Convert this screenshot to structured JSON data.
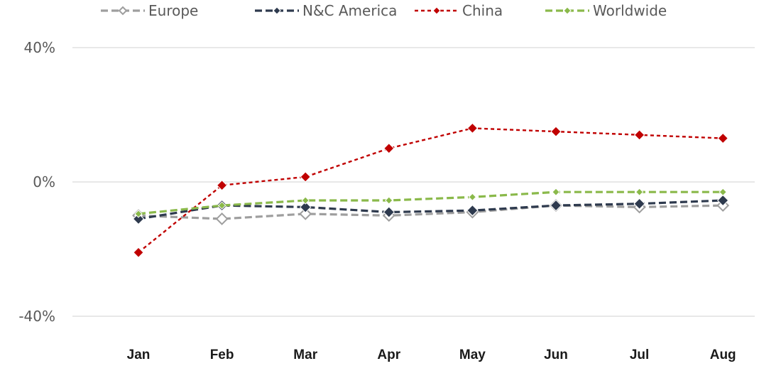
{
  "chart_data": {
    "type": "line",
    "categories": [
      "Jan",
      "Feb",
      "Mar",
      "Apr",
      "May",
      "Jun",
      "Jul",
      "Aug"
    ],
    "ylim": [
      -40,
      40
    ],
    "yticks": [
      -40,
      0,
      40
    ],
    "ytick_labels": [
      "-40%",
      "0%",
      "40%"
    ],
    "grid": true,
    "legend_position": "top",
    "series": [
      {
        "name": "Europe",
        "color": "#9e9e9e",
        "marker": "diamond-open",
        "values": [
          -10.0,
          -11.0,
          -9.5,
          -10.0,
          -9.0,
          -7.0,
          -7.5,
          -7.0
        ]
      },
      {
        "name": "N&C America",
        "color": "#2e3a4e",
        "marker": "diamond",
        "values": [
          -11.0,
          -7.0,
          -7.5,
          -9.0,
          -8.5,
          -7.0,
          -6.5,
          -5.5
        ]
      },
      {
        "name": "China",
        "color": "#c00000",
        "marker": "diamond",
        "values": [
          -21.0,
          -1.0,
          1.5,
          10.0,
          16.0,
          15.0,
          14.0,
          13.0
        ]
      },
      {
        "name": "Worldwide",
        "color": "#8ab94a",
        "marker": "diamond-small",
        "values": [
          -9.5,
          -7.0,
          -5.5,
          -5.5,
          -4.5,
          -3.0,
          -3.0,
          -3.0
        ]
      }
    ]
  }
}
